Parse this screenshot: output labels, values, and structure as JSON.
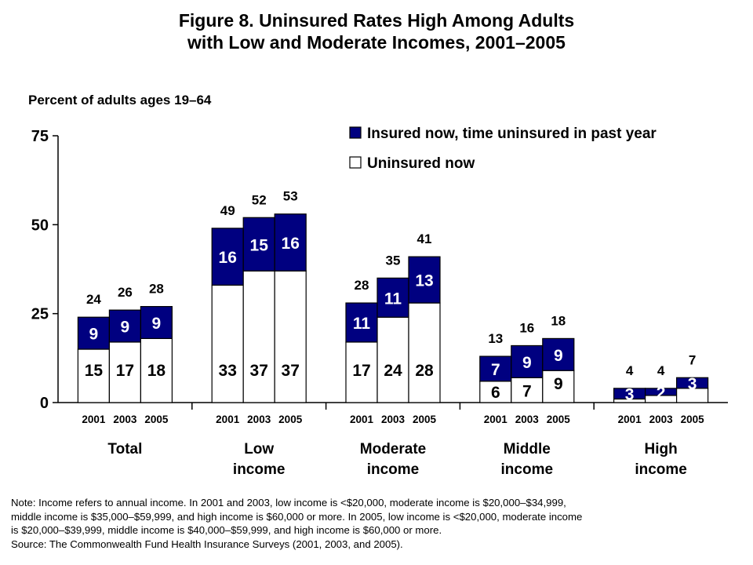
{
  "title_line1": "Figure 8. Uninsured Rates High Among Adults",
  "title_line2": "with Low and Moderate Incomes, 2001–2005",
  "y_axis_label": "Percent of adults ages 19–64",
  "note_lines": [
    "Note: Income refers to annual income. In 2001 and 2003, low income is <$20,000, moderate income is $20,000–$34,999,",
    "middle income is $35,000–$59,999, and high income is $60,000 or more. In 2005, low income is <$20,000, moderate income",
    "is $20,000–$39,999, middle income is $40,000–$59,999, and high income is $60,000 or more.",
    "Source: The Commonwealth Fund Health Insurance Surveys (2001, 2003, and 2005)."
  ],
  "colors": {
    "navy": "#000080",
    "white": "#ffffff",
    "axis": "#000000"
  },
  "chart_data": {
    "type": "bar",
    "stacked": true,
    "ylim": [
      0,
      75
    ],
    "yticks": [
      0,
      25,
      50,
      75
    ],
    "groups": [
      {
        "label_lines": [
          "Total"
        ],
        "years": [
          "2001",
          "2003",
          "2005"
        ],
        "uninsured": [
          15,
          17,
          18
        ],
        "insured_uninsured_past_year": [
          9,
          9,
          9
        ],
        "totals": [
          24,
          26,
          28
        ]
      },
      {
        "label_lines": [
          "Low",
          "income"
        ],
        "years": [
          "2001",
          "2003",
          "2005"
        ],
        "uninsured": [
          33,
          37,
          37
        ],
        "insured_uninsured_past_year": [
          16,
          15,
          16
        ],
        "totals": [
          49,
          52,
          53
        ]
      },
      {
        "label_lines": [
          "Moderate",
          "income"
        ],
        "years": [
          "2001",
          "2003",
          "2005"
        ],
        "uninsured": [
          17,
          24,
          28
        ],
        "insured_uninsured_past_year": [
          11,
          11,
          13
        ],
        "totals": [
          28,
          35,
          41
        ]
      },
      {
        "label_lines": [
          "Middle",
          "income"
        ],
        "years": [
          "2001",
          "2003",
          "2005"
        ],
        "uninsured": [
          6,
          7,
          9
        ],
        "insured_uninsured_past_year": [
          7,
          9,
          9
        ],
        "totals": [
          13,
          16,
          18
        ]
      },
      {
        "label_lines": [
          "High",
          "income"
        ],
        "years": [
          "2001",
          "2003",
          "2005"
        ],
        "uninsured": [
          null,
          null,
          null
        ],
        "insured_uninsured_past_year": [
          3,
          2,
          3
        ],
        "totals": [
          4,
          4,
          7
        ]
      }
    ],
    "series": [
      {
        "name": "Insured now, time uninsured in past year",
        "color": "#000080"
      },
      {
        "name": "Uninsured now",
        "color": "#ffffff"
      }
    ],
    "legend_position": "top-right",
    "grid": false
  }
}
